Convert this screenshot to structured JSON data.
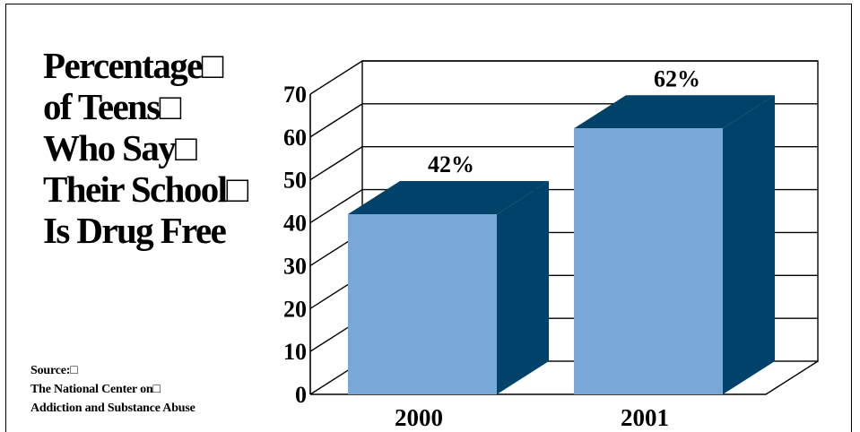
{
  "title_lines": [
    "Percentage□",
    "of Teens□",
    "Who Say□",
    "Their School□",
    "Is Drug Free"
  ],
  "source_lines": [
    "Source:□",
    "The National Center on□",
    "Addiction and Substance Abuse"
  ],
  "chart_data": {
    "type": "bar",
    "categories": [
      "2000",
      "2001"
    ],
    "values": [
      42,
      62
    ],
    "data_labels": [
      "42%",
      "62%"
    ],
    "title": "Percentage of Teens Who Say Their School Is Drug Free",
    "xlabel": "",
    "ylabel": "",
    "ylim": [
      0,
      70
    ],
    "yticks": [
      "0",
      "10",
      "20",
      "30",
      "40",
      "50",
      "60",
      "70"
    ],
    "grid": true,
    "style": "3d",
    "colors": {
      "front": "#78a8d8",
      "top": "#00426a",
      "side": "#00426a"
    }
  }
}
